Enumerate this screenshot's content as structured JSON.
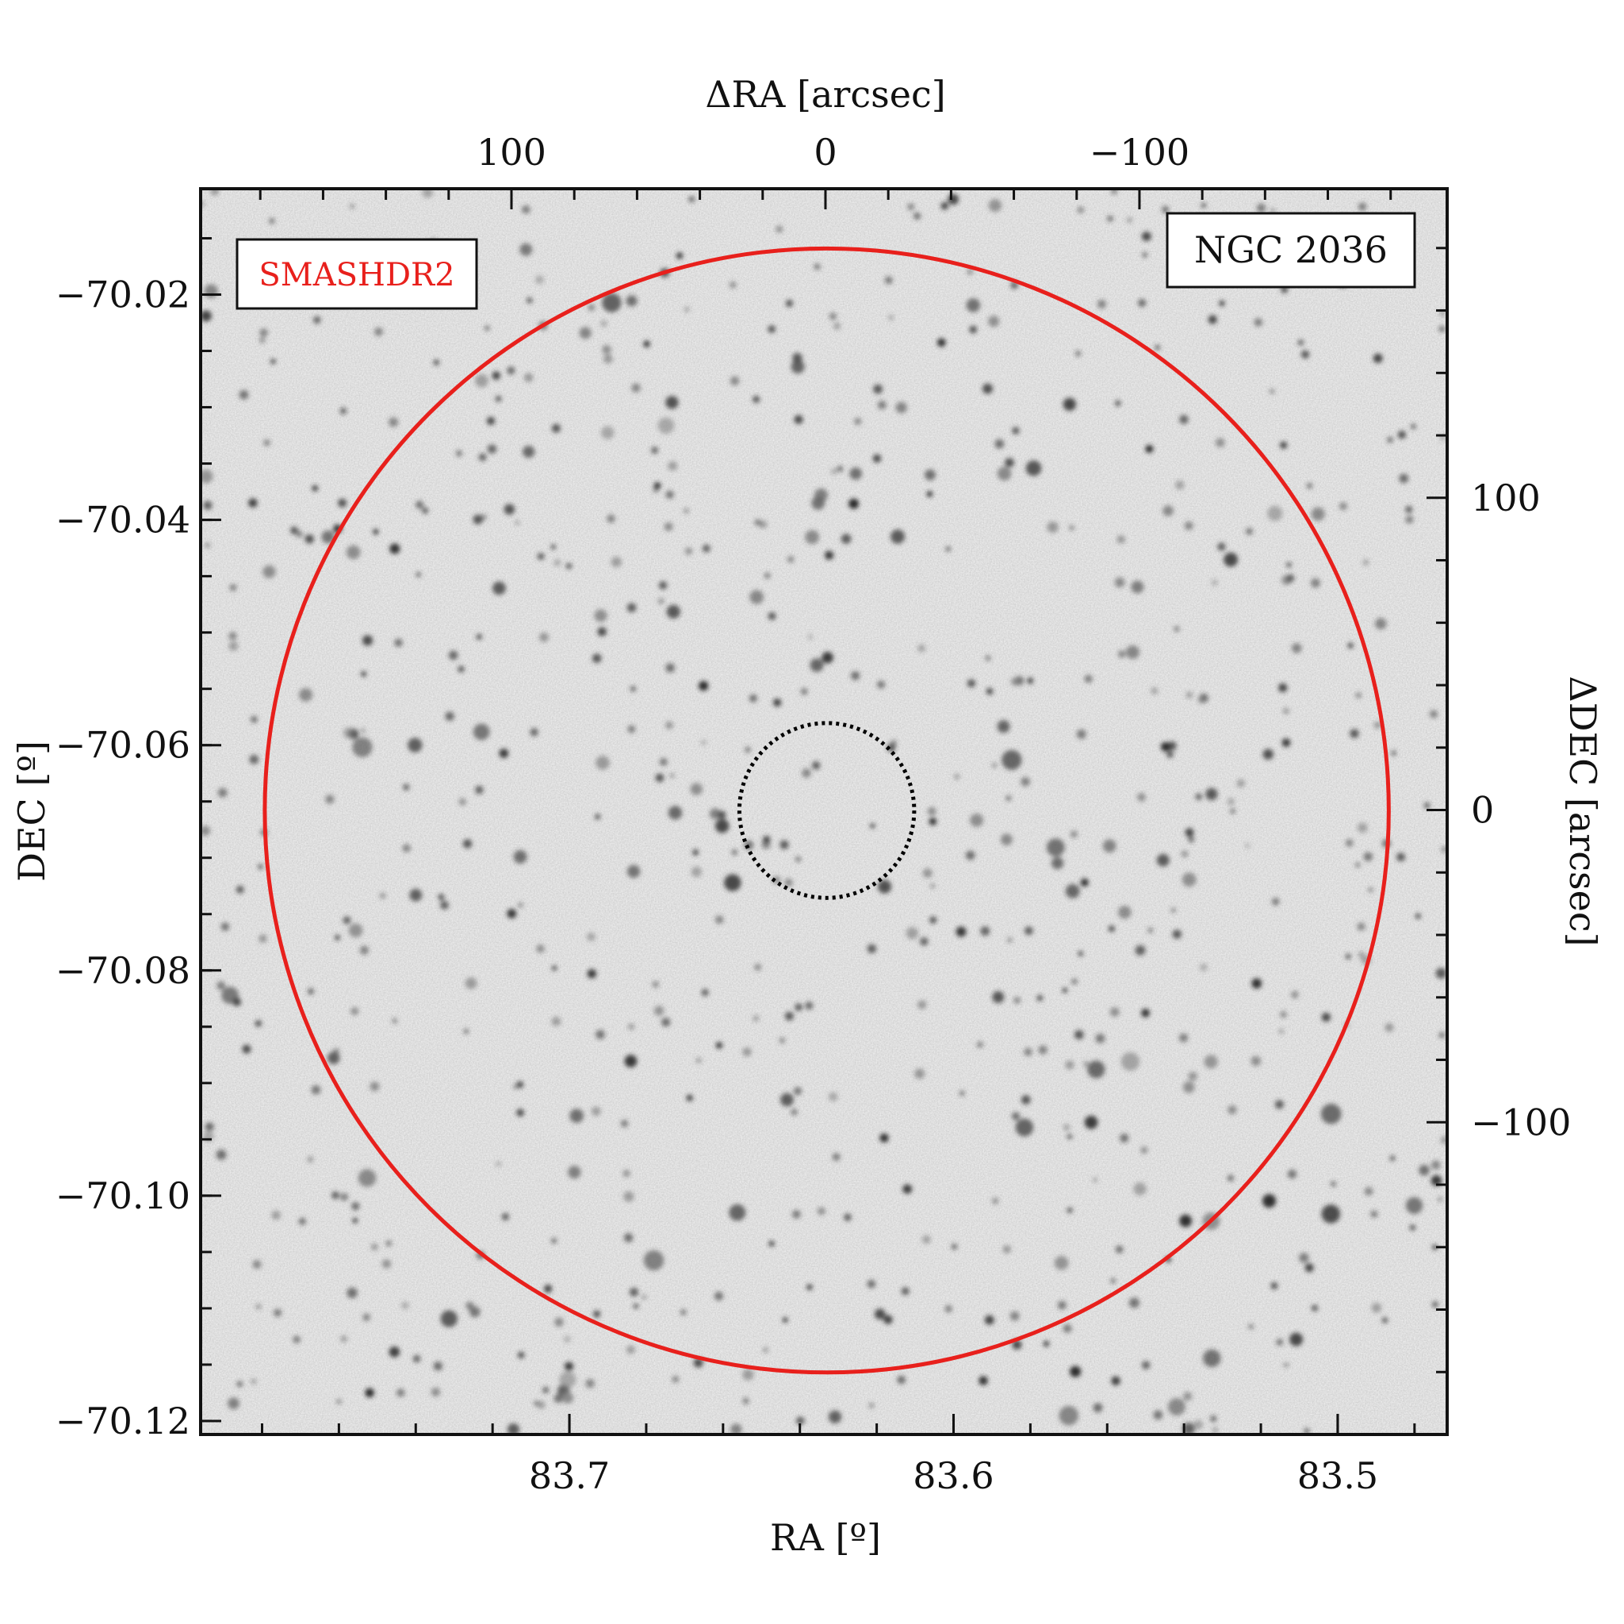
{
  "chart_data": {
    "type": "scatter",
    "title": "",
    "xlabel": "RA [º]",
    "ylabel": "DEC [º]",
    "x2label": "ΔRA [arcsec]",
    "y2label": "ΔDEC [arcsec]",
    "xlim": [
      83.796,
      83.4715
    ],
    "ylim": [
      -70.1212,
      -70.0106
    ],
    "x2lim": [
      199,
      -198
    ],
    "y2lim": [
      -200,
      199
    ],
    "xticks": [
      83.7,
      83.6,
      83.5
    ],
    "xtick_labels": [
      "83.7",
      "83.6",
      "83.5"
    ],
    "yticks": [
      -70.02,
      -70.04,
      -70.06,
      -70.08,
      -70.1,
      -70.12
    ],
    "ytick_labels": [
      "−70.02",
      "−70.04",
      "−70.06",
      "−70.08",
      "−70.10",
      "−70.12"
    ],
    "x2ticks": [
      100,
      0,
      -100
    ],
    "x2tick_labels": [
      "100",
      "0",
      "−100"
    ],
    "y2ticks": [
      100,
      0,
      -100
    ],
    "y2tick_labels": [
      "100",
      "0",
      "−100"
    ],
    "grid": false,
    "background": "inverted greyscale sky image of star field",
    "circles": [
      {
        "name": "outer",
        "center_ra": 83.633,
        "center_dec": -70.0658,
        "radius_arcsec": 180,
        "color": "#e8201c",
        "style": "solid"
      },
      {
        "name": "inner",
        "center_ra": 83.633,
        "center_dec": -70.0658,
        "radius_arcsec": 28,
        "color": "#000000",
        "style": "dotted"
      }
    ],
    "annotations": [
      {
        "text": "SMASHDR2",
        "position": "top-left",
        "color": "#e8201c"
      },
      {
        "text": "NGC 2036",
        "position": "top-right",
        "color": "#111111"
      }
    ]
  }
}
